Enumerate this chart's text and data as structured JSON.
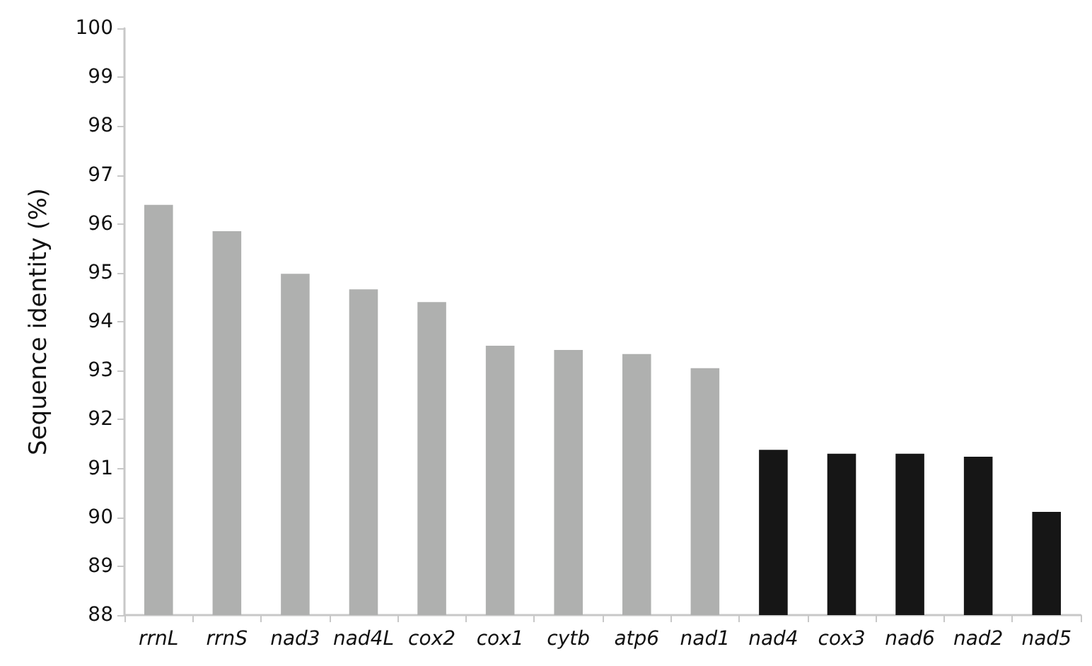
{
  "chart_data": {
    "type": "bar",
    "ylabel": "Sequence identity (%)",
    "categories": [
      "rrnL",
      "rrnS",
      "nad3",
      "nad4L",
      "cox2",
      "cox1",
      "cytb",
      "atp6",
      "nad1",
      "nad4",
      "cox3",
      "nad6",
      "nad2",
      "nad5"
    ],
    "values": [
      96.39,
      95.85,
      94.98,
      94.66,
      94.4,
      93.51,
      93.42,
      93.34,
      93.05,
      91.38,
      91.3,
      91.3,
      91.24,
      90.11
    ],
    "colors": [
      "#afb0af",
      "#afb0af",
      "#afb0af",
      "#afb0af",
      "#afb0af",
      "#afb0af",
      "#afb0af",
      "#afb0af",
      "#afb0af",
      "#161616",
      "#161616",
      "#161616",
      "#161616",
      "#161616"
    ],
    "ylim": [
      88,
      100
    ],
    "yticks": [
      88,
      89,
      90,
      91,
      92,
      93,
      94,
      95,
      96,
      97,
      98,
      99,
      100
    ],
    "grid": false
  }
}
